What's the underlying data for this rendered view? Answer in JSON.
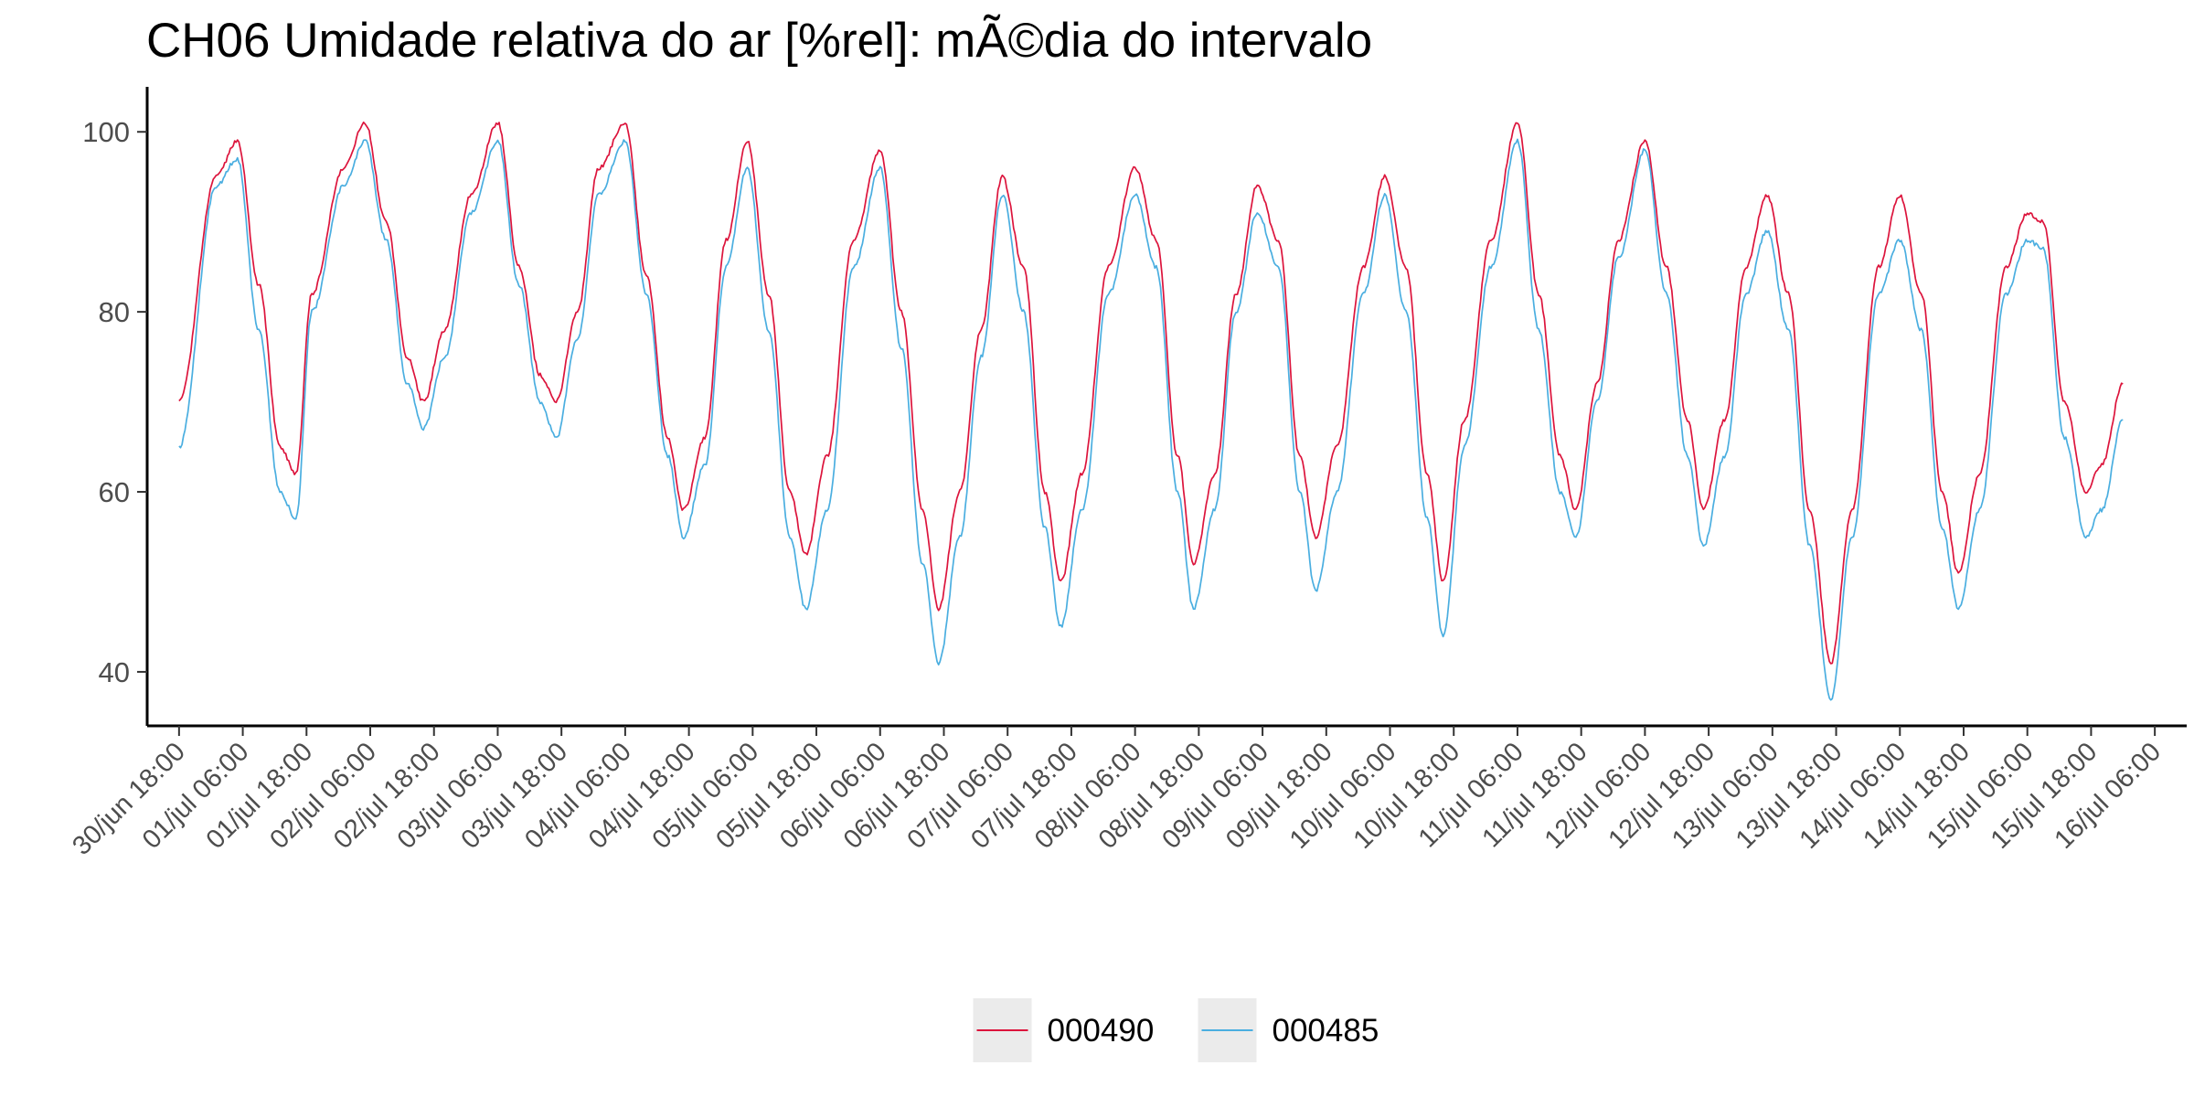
{
  "chart_data": {
    "type": "line",
    "title": "CH06 Umidade relativa do ar [%rel]: mÃ©dia do intervalo",
    "xlabel": "",
    "ylabel": "",
    "ylim": [
      34,
      105
    ],
    "xlim": [
      "2020-06-30T12:00",
      "2020-07-16T12:00"
    ],
    "grid": false,
    "legend_position": "bottom",
    "y_ticks": [
      40,
      60,
      80,
      100
    ],
    "x_ticks": [
      {
        "x": "2020-06-30T18:00",
        "label": "30/jun 18:00"
      },
      {
        "x": "2020-07-01T06:00",
        "label": "01/jul 06:00"
      },
      {
        "x": "2020-07-01T18:00",
        "label": "01/jul 18:00"
      },
      {
        "x": "2020-07-02T06:00",
        "label": "02/jul 06:00"
      },
      {
        "x": "2020-07-02T18:00",
        "label": "02/jul 18:00"
      },
      {
        "x": "2020-07-03T06:00",
        "label": "03/jul 06:00"
      },
      {
        "x": "2020-07-03T18:00",
        "label": "03/jul 18:00"
      },
      {
        "x": "2020-07-04T06:00",
        "label": "04/jul 06:00"
      },
      {
        "x": "2020-07-04T18:00",
        "label": "04/jul 18:00"
      },
      {
        "x": "2020-07-05T06:00",
        "label": "05/jul 06:00"
      },
      {
        "x": "2020-07-05T18:00",
        "label": "05/jul 18:00"
      },
      {
        "x": "2020-07-06T06:00",
        "label": "06/jul 06:00"
      },
      {
        "x": "2020-07-06T18:00",
        "label": "06/jul 18:00"
      },
      {
        "x": "2020-07-07T06:00",
        "label": "07/jul 06:00"
      },
      {
        "x": "2020-07-07T18:00",
        "label": "07/jul 18:00"
      },
      {
        "x": "2020-07-08T06:00",
        "label": "08/jul 06:00"
      },
      {
        "x": "2020-07-08T18:00",
        "label": "08/jul 18:00"
      },
      {
        "x": "2020-07-09T06:00",
        "label": "09/jul 06:00"
      },
      {
        "x": "2020-07-09T18:00",
        "label": "09/jul 18:00"
      },
      {
        "x": "2020-07-10T06:00",
        "label": "10/jul 06:00"
      },
      {
        "x": "2020-07-10T18:00",
        "label": "10/jul 18:00"
      },
      {
        "x": "2020-07-11T06:00",
        "label": "11/jul 06:00"
      },
      {
        "x": "2020-07-11T18:00",
        "label": "11/jul 18:00"
      },
      {
        "x": "2020-07-12T06:00",
        "label": "12/jul 06:00"
      },
      {
        "x": "2020-07-12T18:00",
        "label": "12/jul 18:00"
      },
      {
        "x": "2020-07-13T06:00",
        "label": "13/jul 06:00"
      },
      {
        "x": "2020-07-13T18:00",
        "label": "13/jul 18:00"
      },
      {
        "x": "2020-07-14T06:00",
        "label": "14/jul 06:00"
      },
      {
        "x": "2020-07-14T18:00",
        "label": "14/jul 18:00"
      },
      {
        "x": "2020-07-15T06:00",
        "label": "15/jul 06:00"
      },
      {
        "x": "2020-07-15T18:00",
        "label": "15/jul 18:00"
      },
      {
        "x": "2020-07-16T06:00",
        "label": "16/jul 06:00"
      }
    ],
    "series": [
      {
        "name": "000490",
        "color": "#dc143c",
        "points": [
          [
            "2020-06-30T18:00",
            70
          ],
          [
            "2020-07-01T01:00",
            95
          ],
          [
            "2020-07-01T05:00",
            99
          ],
          [
            "2020-07-01T09:00",
            83
          ],
          [
            "2020-07-01T13:00",
            65
          ],
          [
            "2020-07-01T16:00",
            62
          ],
          [
            "2020-07-01T19:00",
            82
          ],
          [
            "2020-07-02T01:00",
            96
          ],
          [
            "2020-07-02T05:00",
            101
          ],
          [
            "2020-07-02T09:00",
            90
          ],
          [
            "2020-07-02T13:00",
            75
          ],
          [
            "2020-07-02T16:00",
            70
          ],
          [
            "2020-07-02T20:00",
            78
          ],
          [
            "2020-07-03T01:00",
            93
          ],
          [
            "2020-07-03T06:00",
            101
          ],
          [
            "2020-07-03T10:00",
            85
          ],
          [
            "2020-07-03T14:00",
            73
          ],
          [
            "2020-07-03T17:00",
            70
          ],
          [
            "2020-07-03T21:00",
            80
          ],
          [
            "2020-07-04T01:00",
            96
          ],
          [
            "2020-07-04T06:00",
            101
          ],
          [
            "2020-07-04T10:00",
            84
          ],
          [
            "2020-07-04T14:00",
            66
          ],
          [
            "2020-07-04T17:00",
            58
          ],
          [
            "2020-07-04T21:00",
            66
          ],
          [
            "2020-07-05T01:00",
            88
          ],
          [
            "2020-07-05T05:00",
            99
          ],
          [
            "2020-07-05T09:00",
            82
          ],
          [
            "2020-07-05T13:00",
            60
          ],
          [
            "2020-07-05T16:00",
            53
          ],
          [
            "2020-07-05T20:00",
            64
          ],
          [
            "2020-07-06T01:00",
            88
          ],
          [
            "2020-07-06T06:00",
            98
          ],
          [
            "2020-07-06T10:00",
            80
          ],
          [
            "2020-07-06T14:00",
            58
          ],
          [
            "2020-07-06T17:00",
            47
          ],
          [
            "2020-07-06T21:00",
            60
          ],
          [
            "2020-07-07T01:00",
            78
          ],
          [
            "2020-07-07T05:00",
            95
          ],
          [
            "2020-07-07T09:00",
            85
          ],
          [
            "2020-07-07T13:00",
            60
          ],
          [
            "2020-07-07T16:00",
            50
          ],
          [
            "2020-07-07T20:00",
            62
          ],
          [
            "2020-07-08T01:00",
            85
          ],
          [
            "2020-07-08T06:00",
            96
          ],
          [
            "2020-07-08T10:00",
            88
          ],
          [
            "2020-07-08T14:00",
            64
          ],
          [
            "2020-07-08T17:00",
            52
          ],
          [
            "2020-07-08T21:00",
            62
          ],
          [
            "2020-07-09T01:00",
            82
          ],
          [
            "2020-07-09T05:00",
            94
          ],
          [
            "2020-07-09T09:00",
            88
          ],
          [
            "2020-07-09T13:00",
            64
          ],
          [
            "2020-07-09T16:00",
            55
          ],
          [
            "2020-07-09T20:00",
            65
          ],
          [
            "2020-07-10T01:00",
            85
          ],
          [
            "2020-07-10T05:00",
            95
          ],
          [
            "2020-07-10T09:00",
            85
          ],
          [
            "2020-07-10T13:00",
            62
          ],
          [
            "2020-07-10T16:00",
            50
          ],
          [
            "2020-07-10T20:00",
            68
          ],
          [
            "2020-07-11T01:00",
            88
          ],
          [
            "2020-07-11T06:00",
            101
          ],
          [
            "2020-07-11T10:00",
            82
          ],
          [
            "2020-07-11T14:00",
            64
          ],
          [
            "2020-07-11T17:00",
            58
          ],
          [
            "2020-07-11T21:00",
            72
          ],
          [
            "2020-07-12T01:00",
            88
          ],
          [
            "2020-07-12T06:00",
            99
          ],
          [
            "2020-07-12T10:00",
            85
          ],
          [
            "2020-07-12T14:00",
            68
          ],
          [
            "2020-07-12T17:00",
            58
          ],
          [
            "2020-07-12T21:00",
            68
          ],
          [
            "2020-07-13T01:00",
            85
          ],
          [
            "2020-07-13T05:00",
            93
          ],
          [
            "2020-07-13T09:00",
            82
          ],
          [
            "2020-07-13T13:00",
            58
          ],
          [
            "2020-07-13T17:00",
            41
          ],
          [
            "2020-07-13T21:00",
            58
          ],
          [
            "2020-07-14T02:00",
            85
          ],
          [
            "2020-07-14T06:00",
            93
          ],
          [
            "2020-07-14T10:00",
            82
          ],
          [
            "2020-07-14T14:00",
            60
          ],
          [
            "2020-07-14T17:00",
            51
          ],
          [
            "2020-07-14T21:00",
            62
          ],
          [
            "2020-07-15T02:00",
            85
          ],
          [
            "2020-07-15T06:00",
            91
          ],
          [
            "2020-07-15T09:00",
            90
          ],
          [
            "2020-07-15T13:00",
            70
          ],
          [
            "2020-07-15T17:00",
            60
          ],
          [
            "2020-07-15T20:00",
            63
          ],
          [
            "2020-07-16T00:00",
            72
          ]
        ]
      },
      {
        "name": "000485",
        "color": "#4aaee0",
        "points": [
          [
            "2020-06-30T18:00",
            65
          ],
          [
            "2020-07-01T01:00",
            94
          ],
          [
            "2020-07-01T05:00",
            97
          ],
          [
            "2020-07-01T09:00",
            78
          ],
          [
            "2020-07-01T13:00",
            60
          ],
          [
            "2020-07-01T16:00",
            57
          ],
          [
            "2020-07-01T19:00",
            80
          ],
          [
            "2020-07-02T01:00",
            94
          ],
          [
            "2020-07-02T05:00",
            99
          ],
          [
            "2020-07-02T09:00",
            88
          ],
          [
            "2020-07-02T13:00",
            72
          ],
          [
            "2020-07-02T16:00",
            67
          ],
          [
            "2020-07-02T20:00",
            75
          ],
          [
            "2020-07-03T01:00",
            91
          ],
          [
            "2020-07-03T06:00",
            99
          ],
          [
            "2020-07-03T10:00",
            83
          ],
          [
            "2020-07-03T14:00",
            70
          ],
          [
            "2020-07-03T17:00",
            66
          ],
          [
            "2020-07-03T21:00",
            77
          ],
          [
            "2020-07-04T01:00",
            93
          ],
          [
            "2020-07-04T06:00",
            99
          ],
          [
            "2020-07-04T10:00",
            82
          ],
          [
            "2020-07-04T14:00",
            64
          ],
          [
            "2020-07-04T17:00",
            55
          ],
          [
            "2020-07-04T21:00",
            63
          ],
          [
            "2020-07-05T01:00",
            85
          ],
          [
            "2020-07-05T05:00",
            96
          ],
          [
            "2020-07-05T09:00",
            78
          ],
          [
            "2020-07-05T13:00",
            55
          ],
          [
            "2020-07-05T16:00",
            47
          ],
          [
            "2020-07-05T20:00",
            58
          ],
          [
            "2020-07-06T01:00",
            85
          ],
          [
            "2020-07-06T06:00",
            96
          ],
          [
            "2020-07-06T10:00",
            76
          ],
          [
            "2020-07-06T14:00",
            52
          ],
          [
            "2020-07-06T17:00",
            41
          ],
          [
            "2020-07-06T21:00",
            55
          ],
          [
            "2020-07-07T01:00",
            75
          ],
          [
            "2020-07-07T05:00",
            93
          ],
          [
            "2020-07-07T09:00",
            80
          ],
          [
            "2020-07-07T13:00",
            56
          ],
          [
            "2020-07-07T16:00",
            45
          ],
          [
            "2020-07-07T20:00",
            58
          ],
          [
            "2020-07-08T01:00",
            82
          ],
          [
            "2020-07-08T06:00",
            93
          ],
          [
            "2020-07-08T10:00",
            85
          ],
          [
            "2020-07-08T14:00",
            60
          ],
          [
            "2020-07-08T17:00",
            47
          ],
          [
            "2020-07-08T21:00",
            58
          ],
          [
            "2020-07-09T01:00",
            80
          ],
          [
            "2020-07-09T05:00",
            91
          ],
          [
            "2020-07-09T09:00",
            85
          ],
          [
            "2020-07-09T13:00",
            60
          ],
          [
            "2020-07-09T16:00",
            49
          ],
          [
            "2020-07-09T20:00",
            60
          ],
          [
            "2020-07-10T01:00",
            82
          ],
          [
            "2020-07-10T05:00",
            93
          ],
          [
            "2020-07-10T09:00",
            80
          ],
          [
            "2020-07-10T13:00",
            57
          ],
          [
            "2020-07-10T16:00",
            44
          ],
          [
            "2020-07-10T20:00",
            65
          ],
          [
            "2020-07-11T01:00",
            85
          ],
          [
            "2020-07-11T06:00",
            99
          ],
          [
            "2020-07-11T10:00",
            78
          ],
          [
            "2020-07-11T14:00",
            60
          ],
          [
            "2020-07-11T17:00",
            55
          ],
          [
            "2020-07-11T21:00",
            70
          ],
          [
            "2020-07-12T01:00",
            86
          ],
          [
            "2020-07-12T06:00",
            98
          ],
          [
            "2020-07-12T10:00",
            82
          ],
          [
            "2020-07-12T14:00",
            64
          ],
          [
            "2020-07-12T17:00",
            54
          ],
          [
            "2020-07-12T21:00",
            64
          ],
          [
            "2020-07-13T01:00",
            82
          ],
          [
            "2020-07-13T05:00",
            89
          ],
          [
            "2020-07-13T09:00",
            78
          ],
          [
            "2020-07-13T13:00",
            54
          ],
          [
            "2020-07-13T17:00",
            37
          ],
          [
            "2020-07-13T21:00",
            55
          ],
          [
            "2020-07-14T02:00",
            82
          ],
          [
            "2020-07-14T06:00",
            88
          ],
          [
            "2020-07-14T10:00",
            78
          ],
          [
            "2020-07-14T14:00",
            56
          ],
          [
            "2020-07-14T17:00",
            47
          ],
          [
            "2020-07-14T21:00",
            58
          ],
          [
            "2020-07-15T02:00",
            82
          ],
          [
            "2020-07-15T06:00",
            88
          ],
          [
            "2020-07-15T09:00",
            87
          ],
          [
            "2020-07-15T13:00",
            66
          ],
          [
            "2020-07-15T17:00",
            55
          ],
          [
            "2020-07-15T20:00",
            58
          ],
          [
            "2020-07-16T00:00",
            68
          ]
        ]
      }
    ]
  }
}
